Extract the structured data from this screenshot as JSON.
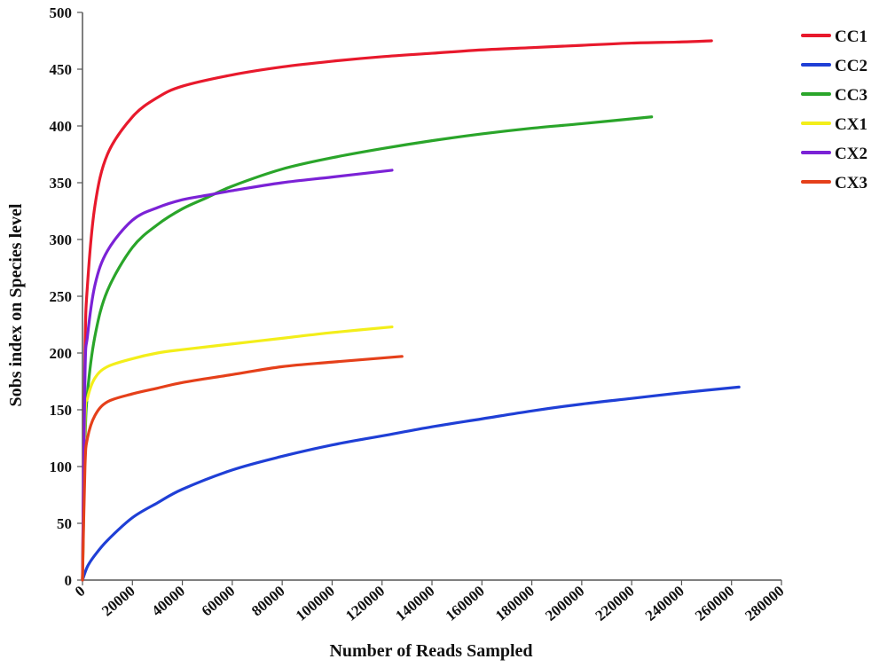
{
  "chart_data": {
    "type": "line",
    "title": "",
    "xlabel": "Number of Reads Sampled",
    "ylabel": "Sobs index on Species level",
    "xlim": [
      0,
      280000
    ],
    "ylim": [
      0,
      500
    ],
    "x_ticks": [
      0,
      20000,
      40000,
      60000,
      80000,
      100000,
      120000,
      140000,
      160000,
      180000,
      200000,
      220000,
      240000,
      260000,
      280000
    ],
    "x_tick_labels": [
      "0",
      "20000",
      "40000",
      "60000",
      "80000",
      "100000",
      "120000",
      "140000",
      "160000",
      "180000",
      "200000",
      "220000",
      "240000",
      "260000",
      "280000"
    ],
    "y_ticks": [
      0,
      50,
      100,
      150,
      200,
      250,
      300,
      350,
      400,
      450,
      500
    ],
    "y_tick_labels": [
      "0",
      "50",
      "100",
      "150",
      "200",
      "250",
      "300",
      "350",
      "400",
      "450",
      "500"
    ],
    "grid": false,
    "legend_position": "top-right",
    "series": [
      {
        "name": "CC1",
        "color": "#e8192c",
        "points": [
          [
            0,
            0
          ],
          [
            1000,
            200
          ],
          [
            2000,
            260
          ],
          [
            5000,
            330
          ],
          [
            10000,
            375
          ],
          [
            20000,
            408
          ],
          [
            30000,
            425
          ],
          [
            40000,
            435
          ],
          [
            60000,
            445
          ],
          [
            80000,
            452
          ],
          [
            100000,
            457
          ],
          [
            120000,
            461
          ],
          [
            140000,
            464
          ],
          [
            160000,
            467
          ],
          [
            180000,
            469
          ],
          [
            200000,
            471
          ],
          [
            220000,
            473
          ],
          [
            240000,
            474
          ],
          [
            252000,
            475
          ]
        ]
      },
      {
        "name": "CC2",
        "color": "#1f3fd6",
        "points": [
          [
            0,
            0
          ],
          [
            2000,
            12
          ],
          [
            5000,
            22
          ],
          [
            10000,
            35
          ],
          [
            20000,
            55
          ],
          [
            30000,
            68
          ],
          [
            40000,
            80
          ],
          [
            60000,
            97
          ],
          [
            80000,
            109
          ],
          [
            100000,
            119
          ],
          [
            120000,
            127
          ],
          [
            140000,
            135
          ],
          [
            160000,
            142
          ],
          [
            180000,
            149
          ],
          [
            200000,
            155
          ],
          [
            220000,
            160
          ],
          [
            240000,
            165
          ],
          [
            263000,
            170
          ]
        ]
      },
      {
        "name": "CC3",
        "color": "#2aa52a",
        "points": [
          [
            0,
            0
          ],
          [
            1000,
            120
          ],
          [
            2000,
            165
          ],
          [
            5000,
            215
          ],
          [
            10000,
            255
          ],
          [
            20000,
            293
          ],
          [
            30000,
            313
          ],
          [
            40000,
            327
          ],
          [
            50000,
            337
          ],
          [
            60000,
            347
          ],
          [
            80000,
            362
          ],
          [
            100000,
            372
          ],
          [
            120000,
            380
          ],
          [
            140000,
            387
          ],
          [
            160000,
            393
          ],
          [
            180000,
            398
          ],
          [
            200000,
            402
          ],
          [
            228000,
            408
          ]
        ]
      },
      {
        "name": "CX1",
        "color": "#f3ee1a",
        "points": [
          [
            0,
            0
          ],
          [
            1000,
            140
          ],
          [
            2000,
            160
          ],
          [
            5000,
            178
          ],
          [
            10000,
            188
          ],
          [
            20000,
            195
          ],
          [
            30000,
            200
          ],
          [
            40000,
            203
          ],
          [
            60000,
            208
          ],
          [
            80000,
            213
          ],
          [
            100000,
            218
          ],
          [
            124000,
            223
          ]
        ]
      },
      {
        "name": "CX2",
        "color": "#7b22d6",
        "points": [
          [
            0,
            0
          ],
          [
            1000,
            180
          ],
          [
            2000,
            215
          ],
          [
            5000,
            260
          ],
          [
            10000,
            290
          ],
          [
            20000,
            317
          ],
          [
            30000,
            328
          ],
          [
            40000,
            335
          ],
          [
            50000,
            339
          ],
          [
            60000,
            343
          ],
          [
            80000,
            350
          ],
          [
            100000,
            355
          ],
          [
            124000,
            361
          ]
        ]
      },
      {
        "name": "CX3",
        "color": "#e5401a",
        "points": [
          [
            0,
            0
          ],
          [
            1000,
            100
          ],
          [
            2000,
            125
          ],
          [
            5000,
            145
          ],
          [
            10000,
            157
          ],
          [
            20000,
            164
          ],
          [
            30000,
            169
          ],
          [
            40000,
            174
          ],
          [
            60000,
            181
          ],
          [
            80000,
            188
          ],
          [
            100000,
            192
          ],
          [
            128000,
            197
          ]
        ]
      }
    ]
  }
}
